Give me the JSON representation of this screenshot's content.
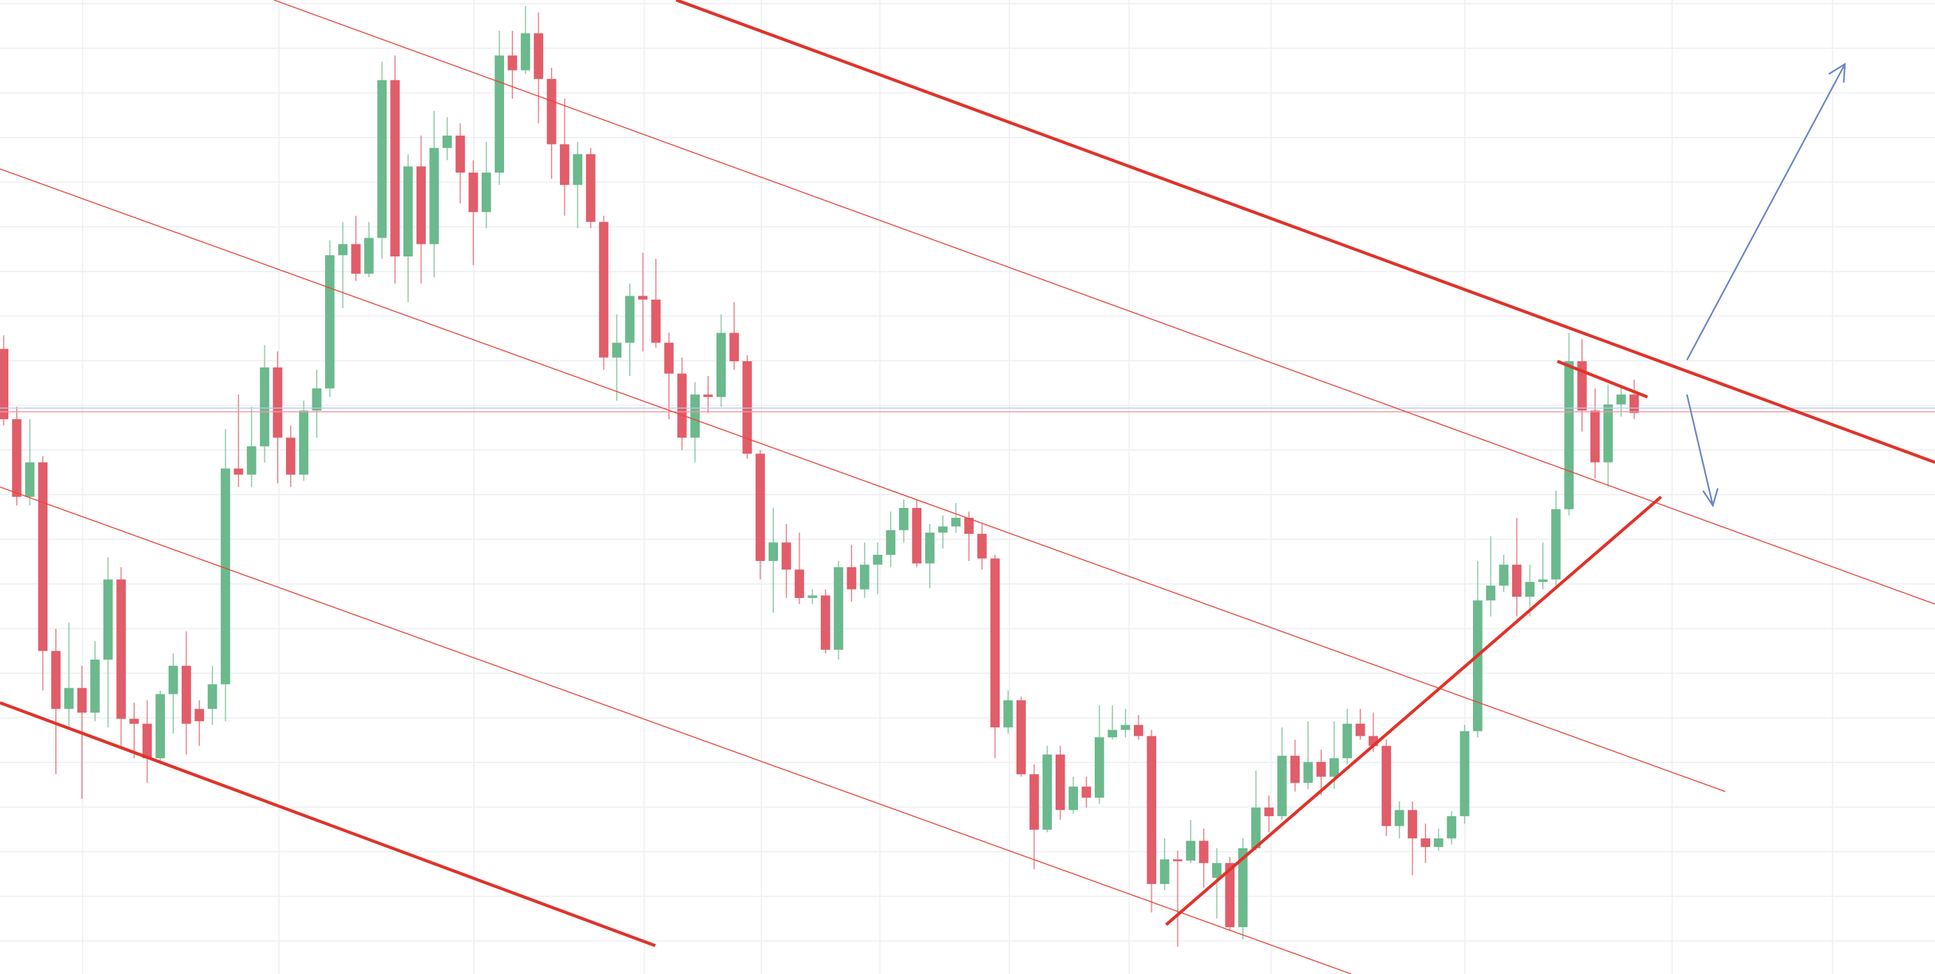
{
  "chart_data": {
    "type": "candlestick",
    "categories": [
      null,
      null,
      null,
      null,
      null,
      null,
      null,
      null,
      null,
      null,
      null,
      null,
      null,
      null,
      null,
      null,
      null,
      null,
      null,
      null,
      null,
      null,
      null,
      null,
      null,
      null,
      null,
      null,
      null,
      null,
      null,
      null,
      null,
      null,
      null,
      null,
      null,
      null,
      null,
      null,
      null,
      null,
      null,
      null,
      null,
      null,
      null,
      null,
      null,
      null,
      null,
      null,
      null,
      null,
      null,
      null,
      null,
      null,
      null,
      null,
      null,
      null,
      null,
      null,
      null,
      null,
      null,
      null,
      null,
      null,
      null,
      null,
      null,
      null,
      null,
      null,
      null,
      null,
      null,
      null,
      null,
      null,
      null,
      null,
      null,
      null,
      null,
      null,
      null,
      null,
      null,
      null,
      null,
      null,
      null,
      null,
      null,
      null,
      null,
      null,
      null,
      null,
      null,
      null,
      null,
      null,
      null,
      null,
      null,
      null,
      null,
      null,
      null,
      null,
      null,
      null,
      null,
      null,
      null,
      null,
      null,
      null,
      null,
      null,
      null,
      null
    ],
    "open": [
      507,
      450,
      387,
      415,
      262,
      215,
      232,
      212,
      255,
      320,
      207,
      203,
      175,
      227,
      250,
      215,
      215,
      235,
      410,
      405,
      428,
      492,
      435,
      405,
      457,
      475,
      583,
      592,
      568,
      597,
      725,
      582,
      655,
      592,
      670,
      680,
      650,
      618,
      650,
      745,
      733,
      763,
      726,
      673,
      640,
      665,
      610,
      500,
      512,
      550,
      547,
      512,
      487,
      435,
      470,
      468,
      520,
      497,
      422,
      335,
      350,
      328,
      305,
      307,
      263,
      330,
      312,
      332,
      340,
      360,
      378,
      333,
      358,
      363,
      370,
      357,
      337,
      200,
      222,
      162,
      117,
      178,
      133,
      152,
      143,
      192,
      198,
      202,
      193,
      73,
      93,
      92,
      108,
      78,
      90,
      38,
      102,
      135,
      128,
      177,
      155,
      172,
      160,
      175,
      203,
      193,
      185,
      120,
      133,
      110,
      103,
      110,
      128,
      197,
      303,
      315,
      332,
      306,
      318,
      320,
      377,
      497,
      457,
      415,
      462,
      470
    ],
    "high": [
      518,
      460,
      450,
      420,
      280,
      285,
      250,
      270,
      338,
      330,
      220,
      222,
      230,
      260,
      278,
      222,
      250,
      442,
      470,
      460,
      510,
      505,
      445,
      465,
      490,
      595,
      610,
      615,
      610,
      740,
      745,
      665,
      680,
      700,
      695,
      690,
      660,
      675,
      765,
      765,
      785,
      780,
      735,
      710,
      675,
      670,
      615,
      535,
      560,
      585,
      580,
      520,
      500,
      480,
      485,
      535,
      545,
      502,
      425,
      378,
      365,
      358,
      312,
      312,
      335,
      348,
      350,
      350,
      375,
      385,
      385,
      365,
      372,
      382,
      375,
      365,
      340,
      230,
      225,
      170,
      185,
      185,
      160,
      160,
      218,
      218,
      215,
      210,
      198,
      110,
      100,
      125,
      118,
      102,
      95,
      110,
      165,
      145,
      200,
      190,
      205,
      182,
      205,
      215,
      215,
      212,
      190,
      140,
      140,
      122,
      118,
      132,
      202,
      335,
      355,
      340,
      370,
      332,
      350,
      392,
      520,
      515,
      475,
      478,
      478,
      482
    ],
    "low": [
      445,
      380,
      380,
      230,
      162,
      200,
      142,
      205,
      200,
      185,
      175,
      155,
      170,
      195,
      178,
      185,
      202,
      205,
      395,
      395,
      415,
      398,
      395,
      400,
      435,
      468,
      540,
      562,
      565,
      580,
      560,
      545,
      560,
      565,
      660,
      625,
      575,
      605,
      640,
      710,
      730,
      690,
      645,
      615,
      605,
      605,
      490,
      465,
      485,
      505,
      508,
      450,
      425,
      415,
      455,
      460,
      490,
      418,
      320,
      293,
      305,
      300,
      300,
      260,
      255,
      302,
      305,
      308,
      330,
      350,
      330,
      313,
      345,
      358,
      335,
      328,
      175,
      195,
      160,
      85,
      115,
      125,
      130,
      135,
      138,
      190,
      192,
      190,
      50,
      68,
      22,
      90,
      70,
      45,
      35,
      28,
      100,
      115,
      125,
      148,
      150,
      145,
      150,
      170,
      190,
      180,
      112,
      110,
      80,
      90,
      100,
      105,
      122,
      192,
      290,
      310,
      290,
      290,
      312,
      315,
      372,
      440,
      402,
      395,
      452,
      450
    ],
    "close": [
      450,
      387,
      415,
      262,
      215,
      232,
      212,
      255,
      320,
      207,
      203,
      175,
      227,
      250,
      203,
      205,
      235,
      410,
      405,
      428,
      492,
      435,
      405,
      457,
      475,
      583,
      592,
      568,
      597,
      725,
      582,
      655,
      592,
      670,
      680,
      650,
      618,
      650,
      745,
      733,
      763,
      726,
      673,
      640,
      665,
      610,
      500,
      512,
      550,
      547,
      512,
      487,
      435,
      470,
      468,
      520,
      497,
      422,
      335,
      350,
      328,
      305,
      307,
      263,
      330,
      312,
      332,
      340,
      360,
      378,
      333,
      358,
      363,
      370,
      357,
      337,
      200,
      222,
      162,
      117,
      178,
      133,
      152,
      143,
      192,
      198,
      202,
      193,
      73,
      93,
      92,
      108,
      90,
      90,
      38,
      102,
      135,
      128,
      177,
      155,
      172,
      160,
      175,
      203,
      193,
      185,
      120,
      133,
      110,
      103,
      110,
      128,
      197,
      303,
      315,
      332,
      306,
      318,
      320,
      377,
      497,
      457,
      415,
      462,
      470,
      455
    ],
    "up_color": "#6bb98c",
    "down_color": "#e15d69",
    "ylim": [
      0,
      790
    ],
    "grid": true
  }
}
